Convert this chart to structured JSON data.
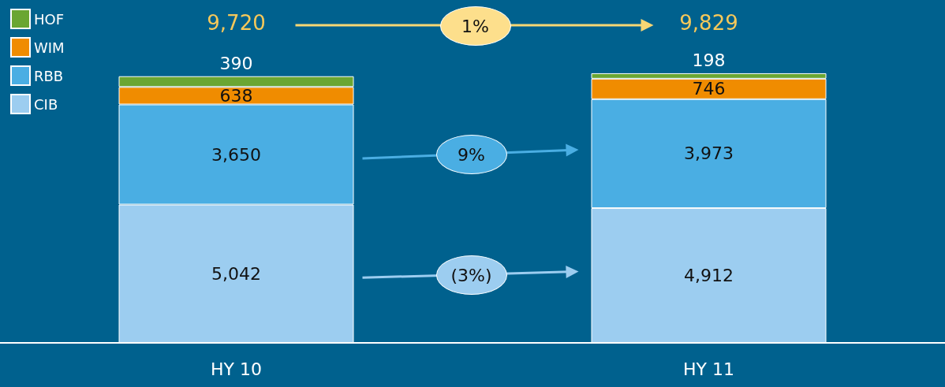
{
  "chart_data": {
    "type": "bar",
    "categories": [
      "HY 10",
      "HY 11"
    ],
    "stacked": true,
    "legend": "top left",
    "series": [
      {
        "name": "CIB",
        "color": "#9ccdf0",
        "values": [
          5042,
          4912
        ],
        "value_labels": [
          "5,042",
          "4,912"
        ]
      },
      {
        "name": "RBB",
        "color": "#4aaee3",
        "values": [
          3650,
          3973
        ],
        "value_labels": [
          "3,650",
          "3,973"
        ]
      },
      {
        "name": "WIM",
        "color": "#f08c00",
        "values": [
          638,
          746
        ],
        "value_labels": [
          "638",
          "746"
        ]
      },
      {
        "name": "HOF",
        "color": "#6aa632",
        "values": [
          390,
          198
        ],
        "value_labels": [
          "390",
          "198"
        ]
      }
    ],
    "totals": [
      "9,720",
      "9,829"
    ],
    "annotations": [
      "1%",
      "9%",
      "(3%)"
    ]
  }
}
